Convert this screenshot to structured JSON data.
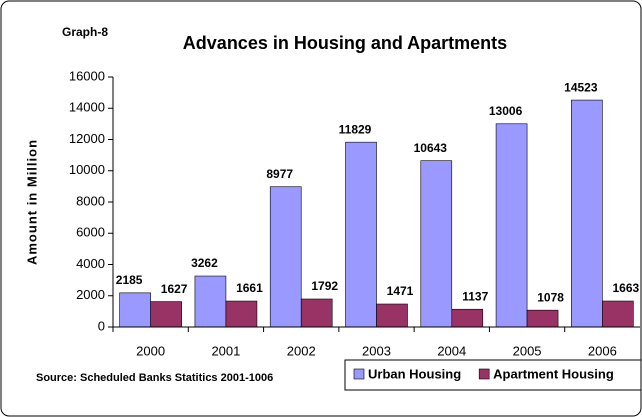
{
  "chart_data": {
    "type": "bar",
    "graph_label": "Graph-8",
    "title": "Advances in Housing and Apartments",
    "y_label": "Amount in Million",
    "source": "Source: Scheduled Banks Statitics 2001-1006",
    "categories": [
      "2000",
      "2001",
      "2002",
      "2003",
      "2004",
      "2005",
      "2006"
    ],
    "series": [
      {
        "name": "Urban Housing",
        "color": "#9999ff",
        "values": [
          2185,
          3262,
          8977,
          11829,
          10643,
          13006,
          14523
        ]
      },
      {
        "name": "Apartment Housing",
        "color": "#993366",
        "values": [
          1627,
          1661,
          1792,
          1471,
          1137,
          1078,
          1663
        ]
      }
    ],
    "ylim": [
      0,
      16000
    ],
    "yticks": [
      0,
      2000,
      4000,
      6000,
      8000,
      10000,
      12000,
      14000,
      16000
    ],
    "grid": false,
    "legend": "bottom-right"
  }
}
